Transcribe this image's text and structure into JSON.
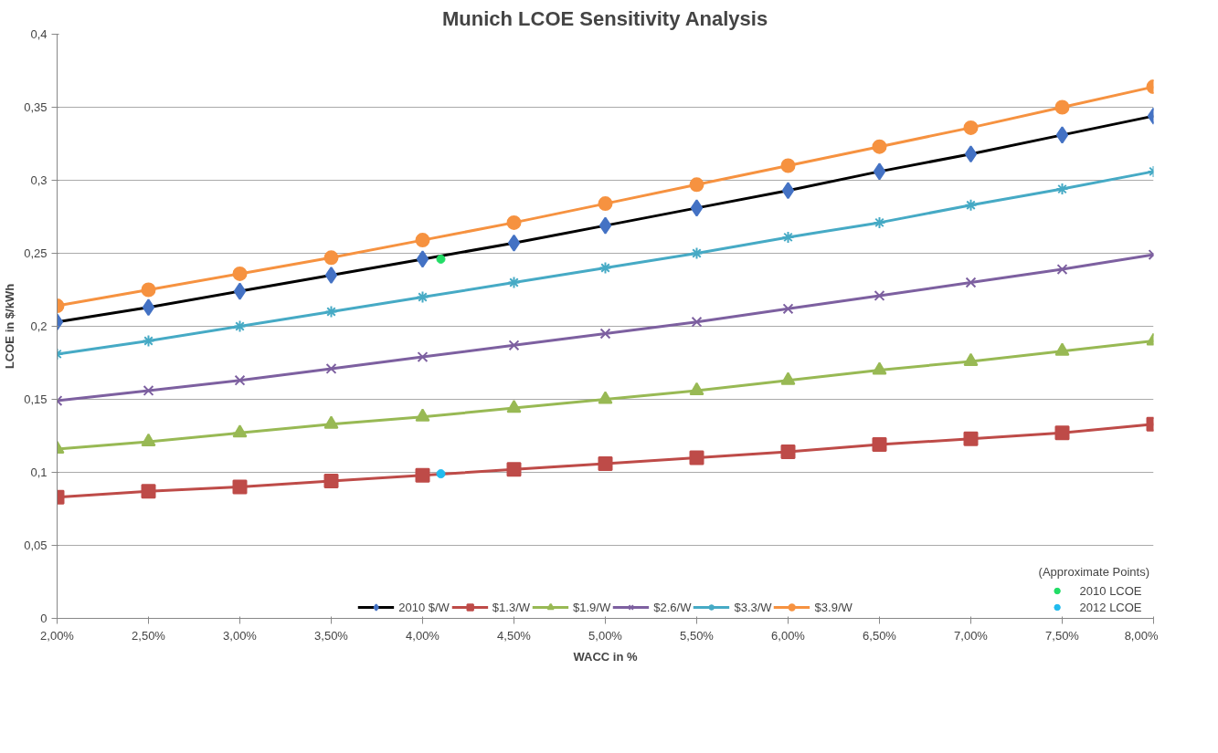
{
  "chart_data": {
    "type": "line",
    "title": "Munich LCOE Sensitivity Analysis",
    "xlabel": "WACC in %",
    "ylabel": "LCOE in $/kWh",
    "x": [
      2,
      2.5,
      3,
      3.5,
      4,
      4.5,
      5,
      5.5,
      6,
      6.5,
      7,
      7.5,
      8
    ],
    "xlim": [
      2,
      8
    ],
    "xticks": [
      {
        "value": 2,
        "label": "2,00%"
      },
      {
        "value": 2.5,
        "label": "2,50%"
      },
      {
        "value": 3,
        "label": "3,00%"
      },
      {
        "value": 3.5,
        "label": "3,50%"
      },
      {
        "value": 4,
        "label": "4,00%"
      },
      {
        "value": 4.5,
        "label": "4,50%"
      },
      {
        "value": 5,
        "label": "5,00%"
      },
      {
        "value": 5.5,
        "label": "5,50%"
      },
      {
        "value": 6,
        "label": "6,00%"
      },
      {
        "value": 6.5,
        "label": "6,50%"
      },
      {
        "value": 7,
        "label": "7,00%"
      },
      {
        "value": 7.5,
        "label": "7,50%"
      },
      {
        "value": 8,
        "label": "8,00%"
      }
    ],
    "ylim": [
      0,
      0.4
    ],
    "yticks": [
      {
        "value": 0,
        "label": "0"
      },
      {
        "value": 0.05,
        "label": "0,05"
      },
      {
        "value": 0.1,
        "label": "0,1"
      },
      {
        "value": 0.15,
        "label": "0,15"
      },
      {
        "value": 0.2,
        "label": "0,2"
      },
      {
        "value": 0.25,
        "label": "0,25"
      },
      {
        "value": 0.3,
        "label": "0,3"
      },
      {
        "value": 0.35,
        "label": "0,35"
      },
      {
        "value": 0.4,
        "label": "0,4"
      }
    ],
    "grid": "y",
    "legend": "bottom",
    "series": [
      {
        "name": "2010 $/W",
        "color": "#000000",
        "marker": "diamond",
        "values": [
          0.203,
          0.213,
          0.224,
          0.235,
          0.246,
          0.257,
          0.269,
          0.281,
          0.293,
          0.306,
          0.318,
          0.331,
          0.344
        ]
      },
      {
        "name": "$1.3/W",
        "color": "#be4b48",
        "marker": "square",
        "values": [
          0.083,
          0.087,
          0.09,
          0.094,
          0.098,
          0.102,
          0.106,
          0.11,
          0.114,
          0.119,
          0.123,
          0.127,
          0.133
        ]
      },
      {
        "name": "$1.9/W",
        "color": "#98b954",
        "marker": "triangle",
        "values": [
          0.116,
          0.121,
          0.127,
          0.133,
          0.138,
          0.144,
          0.15,
          0.156,
          0.163,
          0.17,
          0.176,
          0.183,
          0.19
        ]
      },
      {
        "name": "$2.6/W",
        "color": "#7d60a0",
        "marker": "x",
        "values": [
          0.149,
          0.156,
          0.163,
          0.171,
          0.179,
          0.187,
          0.195,
          0.203,
          0.212,
          0.221,
          0.23,
          0.239,
          0.249
        ]
      },
      {
        "name": "$3.3/W",
        "color": "#46aac5",
        "marker": "cross",
        "values": [
          0.181,
          0.19,
          0.2,
          0.21,
          0.22,
          0.23,
          0.24,
          0.25,
          0.261,
          0.271,
          0.283,
          0.294,
          0.306
        ]
      },
      {
        "name": "$3.9/W",
        "color": "#f69240",
        "marker": "circle",
        "values": [
          0.214,
          0.225,
          0.236,
          0.247,
          0.259,
          0.271,
          0.284,
          0.297,
          0.31,
          0.323,
          0.336,
          0.35,
          0.364
        ]
      },
      {
        "name": "2010 LCOE",
        "type": "scatter",
        "color": "#22dd66",
        "marker": "circle",
        "x": [
          4.1
        ],
        "values": [
          0.246
        ]
      },
      {
        "name": "2012 LCOE",
        "type": "scatter",
        "color": "#22bbee",
        "marker": "circle",
        "x": [
          4.1
        ],
        "values": [
          0.099
        ]
      }
    ],
    "annotations": [
      "(Approximate Points)"
    ]
  }
}
